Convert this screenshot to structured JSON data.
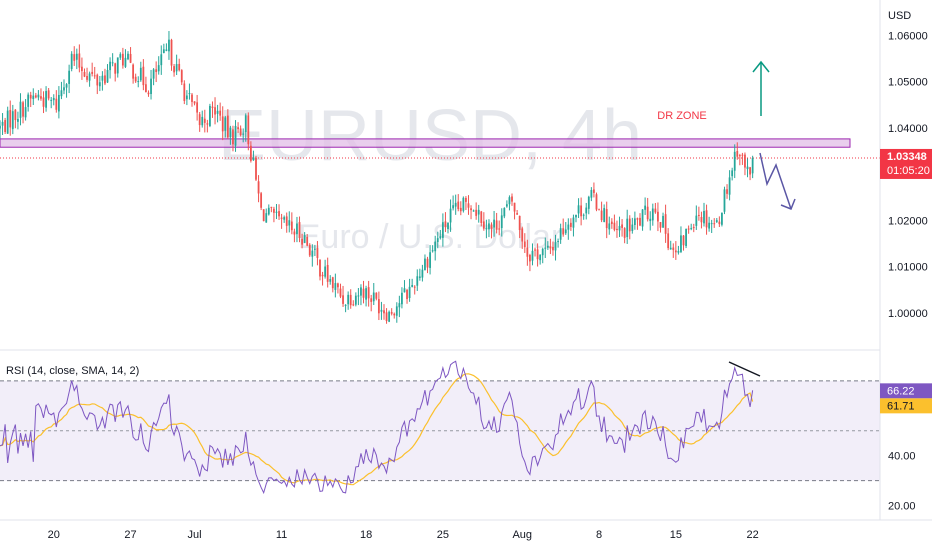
{
  "chart_data": [
    {
      "type": "candlestick",
      "symbol": "EURUSD, 4h",
      "watermark_symbol": "EURUSD, 4h",
      "watermark_desc": "Euro / U.S. Dollar",
      "currency_label": "USD",
      "price_ticks": [
        "1.06000",
        "1.05000",
        "1.04000",
        "1.02000",
        "1.01000",
        "1.00000"
      ],
      "price_tick_values": [
        1.06,
        1.05,
        1.04,
        1.02,
        1.01,
        1.0
      ],
      "ylim": [
        0.995,
        1.062
      ],
      "last_price": "1.03348",
      "last_price_value": 1.03348,
      "countdown": "01:05:20",
      "zone_label": "DR ZONE",
      "zone_range": [
        1.0358,
        1.0376
      ],
      "colors": {
        "up": "#26a69a",
        "down": "#ef5350",
        "zone_fill": "#e1bee7",
        "zone_border": "#9c27b0",
        "arrow_up": "#089981",
        "arrow_down": "#5b57a5",
        "zone_text": "#f23645"
      },
      "path_knots": [
        [
          0,
          1.04
        ],
        [
          6,
          1.043
        ],
        [
          14,
          1.047
        ],
        [
          22,
          1.045
        ],
        [
          28,
          1.055
        ],
        [
          38,
          1.05
        ],
        [
          48,
          1.055
        ],
        [
          58,
          1.049
        ],
        [
          66,
          1.057
        ],
        [
          72,
          1.048
        ],
        [
          78,
          1.041
        ],
        [
          84,
          1.044
        ],
        [
          90,
          1.038
        ],
        [
          96,
          1.041
        ],
        [
          102,
          1.022
        ],
        [
          110,
          1.019
        ],
        [
          118,
          1.017
        ],
        [
          126,
          1.009
        ],
        [
          134,
          1.003
        ],
        [
          142,
          1.005
        ],
        [
          152,
          1.0
        ],
        [
          160,
          1.005
        ],
        [
          168,
          1.013
        ],
        [
          176,
          1.021
        ],
        [
          184,
          1.024
        ],
        [
          192,
          1.018
        ],
        [
          200,
          1.024
        ],
        [
          206,
          1.013
        ],
        [
          214,
          1.013
        ],
        [
          222,
          1.02
        ],
        [
          232,
          1.025
        ],
        [
          240,
          1.017
        ],
        [
          248,
          1.019
        ],
        [
          256,
          1.023
        ],
        [
          264,
          1.012
        ],
        [
          272,
          1.022
        ],
        [
          280,
          1.019
        ],
        [
          288,
          1.036
        ],
        [
          292,
          1.03
        ],
        [
          294,
          1.0335
        ]
      ],
      "rsi": {
        "label": "RSI (14, close, SMA, 14, 2)",
        "ylim": [
          15,
          80
        ],
        "rsi_ticks": [
          "40.00",
          "20.00"
        ],
        "rsi_tick_values": [
          40,
          20
        ],
        "band_upper": 70,
        "band_lower": 30,
        "mid": 50,
        "rsi_value": "66.22",
        "ma_value": "61.71",
        "rsi_value_num": 66.22,
        "ma_value_num": 61.71,
        "colors": {
          "rsi": "#7e57c2",
          "ma": "#fbc02d",
          "band": "#ede7f6"
        }
      },
      "x_ticks": [
        {
          "label": "20",
          "i": 21
        },
        {
          "label": "27",
          "i": 51
        },
        {
          "label": "Jul",
          "i": 76
        },
        {
          "label": "11",
          "i": 110
        },
        {
          "label": "18",
          "i": 143
        },
        {
          "label": "25",
          "i": 173
        },
        {
          "label": "Aug",
          "i": 204
        },
        {
          "label": "8",
          "i": 234
        },
        {
          "label": "15",
          "i": 264
        },
        {
          "label": "22",
          "i": 294
        }
      ]
    }
  ]
}
